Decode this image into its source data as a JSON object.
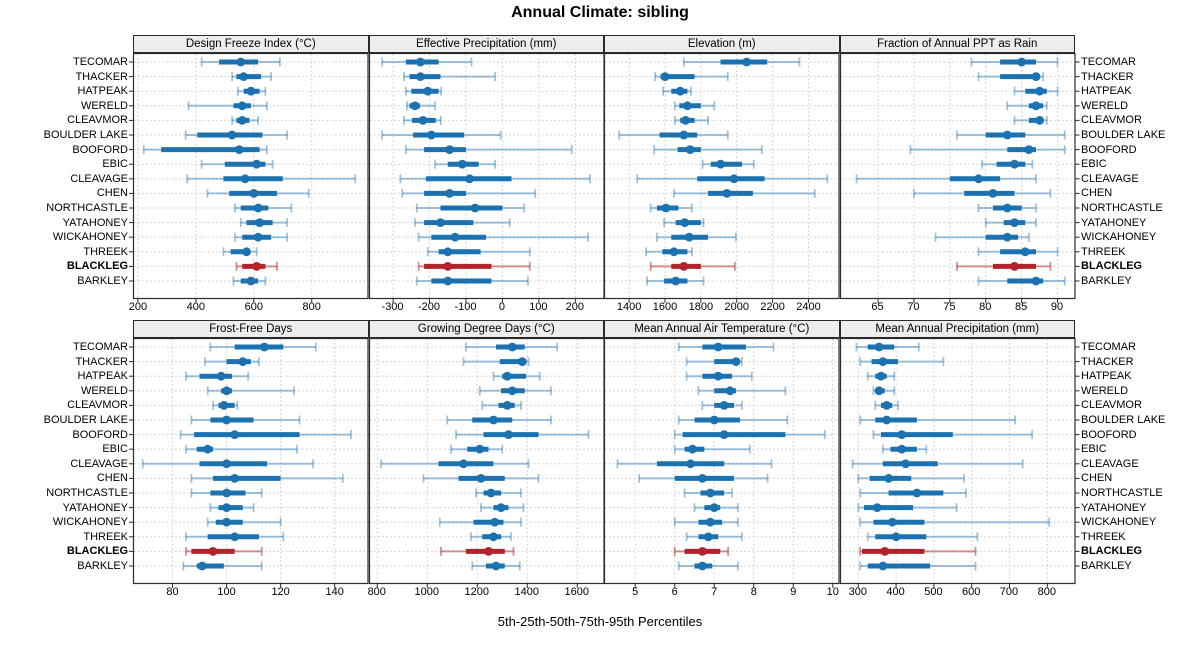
{
  "title": "Annual Climate: sibling",
  "xlabel": "5th-25th-50th-75th-95th Percentiles",
  "colors": {
    "series": "#1c72b1",
    "series_light": "rgba(28,114,177,0.42)",
    "highlight": "#b2232a",
    "highlight_light": "rgba(178,35,42,0.50)",
    "grid": "#c9c9c9",
    "border": "#2b2b2b",
    "strip_bg": "#ededed",
    "text": "#000000"
  },
  "chart_data": {
    "type": "scatter",
    "variant": "trellis-percentile-dotplot",
    "title": "Annual Climate: sibling",
    "xlabel": "5th-25th-50th-75th-95th Percentiles",
    "percentiles": [
      5,
      25,
      50,
      75,
      95
    ],
    "grid": "dotted",
    "legend_position": "none",
    "highlight_category": "BLACKLEG",
    "categories": [
      "TECOMAR",
      "THACKER",
      "HATPEAK",
      "WERELD",
      "CLEAVMOR",
      "BOULDER LAKE",
      "BOOFORD",
      "EBIC",
      "CLEAVAGE",
      "CHEN",
      "NORTHCASTLE",
      "YATAHONEY",
      "WICKAHONEY",
      "THREEK",
      "BLACKLEG",
      "BARKLEY"
    ],
    "panels": [
      {
        "title": "Design Freeze Index (°C)",
        "ticks": [
          200,
          400,
          600,
          800
        ],
        "xlim": [
          183,
          996
        ],
        "rows": [
          [
            420,
            480,
            555,
            615,
            690
          ],
          [
            525,
            540,
            565,
            625,
            660
          ],
          [
            545,
            565,
            590,
            620,
            640
          ],
          [
            375,
            530,
            560,
            590,
            645
          ],
          [
            525,
            540,
            560,
            585,
            615
          ],
          [
            365,
            405,
            525,
            630,
            715
          ],
          [
            220,
            280,
            550,
            620,
            645
          ],
          [
            420,
            500,
            610,
            640,
            665
          ],
          [
            370,
            495,
            570,
            700,
            950
          ],
          [
            440,
            515,
            600,
            680,
            790
          ],
          [
            535,
            555,
            615,
            650,
            730
          ],
          [
            555,
            575,
            620,
            665,
            715
          ],
          [
            535,
            560,
            615,
            660,
            715
          ],
          [
            495,
            520,
            575,
            585,
            610
          ],
          [
            540,
            560,
            610,
            640,
            680
          ],
          [
            530,
            555,
            590,
            615,
            640
          ]
        ]
      },
      {
        "title": "Effective Precipitation (mm)",
        "ticks": [
          -300,
          -200,
          -100,
          0,
          100,
          200
        ],
        "xlim": [
          -366,
          280
        ],
        "rows": [
          [
            -330,
            -265,
            -225,
            -175,
            -85
          ],
          [
            -270,
            -255,
            -225,
            -170,
            -20
          ],
          [
            -265,
            -250,
            -205,
            -175,
            -168
          ],
          [
            -262,
            -255,
            -240,
            -226,
            -185
          ],
          [
            -270,
            -248,
            -218,
            -183,
            -169
          ],
          [
            -330,
            -245,
            -195,
            -105,
            -5
          ],
          [
            -265,
            -215,
            -145,
            -100,
            190
          ],
          [
            -185,
            -150,
            -110,
            -65,
            -20
          ],
          [
            -280,
            -210,
            -90,
            25,
            240
          ],
          [
            -275,
            -215,
            -145,
            -100,
            90
          ],
          [
            -235,
            -170,
            -75,
            0,
            60
          ],
          [
            -240,
            -215,
            -170,
            -80,
            20
          ],
          [
            -230,
            -195,
            -130,
            -45,
            235
          ],
          [
            -205,
            -175,
            -150,
            -60,
            75
          ],
          [
            -230,
            -215,
            -150,
            -30,
            75
          ],
          [
            -235,
            -195,
            -150,
            -30,
            70
          ]
        ]
      },
      {
        "title": "Elevation (m)",
        "ticks": [
          1400,
          1600,
          1800,
          2000,
          2200,
          2400
        ],
        "xlim": [
          1260,
          2573
        ],
        "rows": [
          [
            1705,
            1910,
            2055,
            2170,
            2350
          ],
          [
            1545,
            1575,
            1600,
            1765,
            1950
          ],
          [
            1590,
            1635,
            1685,
            1725,
            1745
          ],
          [
            1655,
            1680,
            1725,
            1800,
            1875
          ],
          [
            1655,
            1685,
            1715,
            1765,
            1840
          ],
          [
            1345,
            1570,
            1705,
            1780,
            1950
          ],
          [
            1540,
            1670,
            1740,
            1800,
            2140
          ],
          [
            1810,
            1855,
            1910,
            2030,
            2095
          ],
          [
            1445,
            1780,
            1985,
            2155,
            2505
          ],
          [
            1650,
            1840,
            1945,
            2090,
            2435
          ],
          [
            1520,
            1555,
            1605,
            1675,
            1750
          ],
          [
            1595,
            1660,
            1710,
            1800,
            1815
          ],
          [
            1555,
            1635,
            1735,
            1840,
            1995
          ],
          [
            1495,
            1585,
            1650,
            1725,
            1750
          ],
          [
            1520,
            1635,
            1705,
            1800,
            1990
          ],
          [
            1500,
            1595,
            1660,
            1725,
            1815
          ]
        ]
      },
      {
        "title": "Fraction of Annual PPT as Rain",
        "ticks": [
          65,
          70,
          75,
          80,
          85,
          90
        ],
        "xlim": [
          59.7,
          92.5
        ],
        "rows": [
          [
            78,
            82,
            85,
            87,
            90
          ],
          [
            79,
            82,
            87,
            87.5,
            88
          ],
          [
            84,
            85.5,
            87.5,
            88.5,
            90
          ],
          [
            83,
            86,
            87,
            88,
            88.5
          ],
          [
            84,
            86,
            87.5,
            88,
            88.5
          ],
          [
            76,
            80,
            83,
            85.5,
            91
          ],
          [
            69.5,
            83,
            86,
            87,
            91
          ],
          [
            79.5,
            81.5,
            84,
            85.5,
            86.5
          ],
          [
            62,
            75,
            79,
            82,
            87
          ],
          [
            70,
            77,
            81,
            84,
            89
          ],
          [
            79,
            81,
            83,
            85,
            87
          ],
          [
            80,
            82.5,
            84,
            85.5,
            87
          ],
          [
            73,
            80,
            83,
            84.5,
            86
          ],
          [
            79,
            82,
            85.5,
            87,
            90
          ],
          [
            76,
            81,
            84,
            87,
            89
          ],
          [
            79,
            83,
            87,
            88,
            91
          ]
        ]
      },
      {
        "title": "Frost-Free Days",
        "ticks": [
          80,
          100,
          120,
          140
        ],
        "xlim": [
          65.4,
          152.5
        ],
        "rows": [
          [
            94,
            103,
            114,
            121,
            133
          ],
          [
            92,
            100,
            106,
            109,
            112
          ],
          [
            85,
            90,
            98,
            102,
            108
          ],
          [
            93,
            98,
            100,
            102,
            125
          ],
          [
            95,
            97,
            99,
            103,
            104
          ],
          [
            87,
            94,
            100,
            110,
            127
          ],
          [
            83,
            88,
            103,
            127,
            146
          ],
          [
            85,
            89,
            93,
            95,
            126
          ],
          [
            69,
            90,
            100,
            115,
            132
          ],
          [
            87,
            95,
            103,
            120,
            143
          ],
          [
            87,
            94,
            100,
            107,
            113
          ],
          [
            94,
            97,
            100,
            106,
            110
          ],
          [
            93,
            96,
            100,
            106,
            120
          ],
          [
            85,
            93,
            103,
            112,
            121
          ],
          [
            85,
            87,
            95,
            103,
            113
          ],
          [
            84,
            89,
            91,
            99,
            113
          ]
        ]
      },
      {
        "title": "Growing Degree Days (°C)",
        "ticks": [
          800,
          1000,
          1200,
          1400,
          1600
        ],
        "xlim": [
          767,
          1709
        ],
        "rows": [
          [
            1155,
            1275,
            1340,
            1390,
            1520
          ],
          [
            1145,
            1290,
            1380,
            1395,
            1405
          ],
          [
            1265,
            1300,
            1320,
            1395,
            1450
          ],
          [
            1210,
            1295,
            1340,
            1390,
            1495
          ],
          [
            1220,
            1285,
            1320,
            1350,
            1375
          ],
          [
            1080,
            1180,
            1265,
            1340,
            1495
          ],
          [
            1115,
            1225,
            1325,
            1445,
            1645
          ],
          [
            1095,
            1160,
            1210,
            1245,
            1300
          ],
          [
            815,
            1045,
            1145,
            1265,
            1405
          ],
          [
            985,
            1125,
            1215,
            1310,
            1445
          ],
          [
            1195,
            1225,
            1255,
            1295,
            1375
          ],
          [
            1215,
            1265,
            1295,
            1325,
            1385
          ],
          [
            1050,
            1185,
            1270,
            1305,
            1375
          ],
          [
            1175,
            1220,
            1265,
            1295,
            1335
          ],
          [
            1055,
            1155,
            1245,
            1310,
            1345
          ],
          [
            1180,
            1235,
            1275,
            1310,
            1370
          ]
        ]
      },
      {
        "title": "Mean Annual Air Temperature (°C)",
        "ticks": [
          5,
          6,
          7,
          8,
          9,
          10
        ],
        "xlim": [
          4.21,
          10.17
        ],
        "rows": [
          [
            6.1,
            6.7,
            7.1,
            7.8,
            8.5
          ],
          [
            6.3,
            7.0,
            7.55,
            7.65,
            7.7
          ],
          [
            6.3,
            6.7,
            7.1,
            7.45,
            7.95
          ],
          [
            6.6,
            7.0,
            7.4,
            7.55,
            8.8
          ],
          [
            6.7,
            7.0,
            7.25,
            7.5,
            7.7
          ],
          [
            6.1,
            6.5,
            7.0,
            7.65,
            8.85
          ],
          [
            6.0,
            6.2,
            7.25,
            8.8,
            9.8
          ],
          [
            6.0,
            6.25,
            6.45,
            6.75,
            7.9
          ],
          [
            4.55,
            5.55,
            6.4,
            7.25,
            8.45
          ],
          [
            5.1,
            6.0,
            6.7,
            7.5,
            8.35
          ],
          [
            6.25,
            6.65,
            6.9,
            7.25,
            7.45
          ],
          [
            6.5,
            6.75,
            7.0,
            7.15,
            7.6
          ],
          [
            6.0,
            6.6,
            6.9,
            7.2,
            7.6
          ],
          [
            6.3,
            6.6,
            6.85,
            7.1,
            7.7
          ],
          [
            6.0,
            6.25,
            6.7,
            7.15,
            7.35
          ],
          [
            6.1,
            6.5,
            6.7,
            6.95,
            7.6
          ]
        ]
      },
      {
        "title": "Mean Annual Precipitation (mm)",
        "ticks": [
          300,
          400,
          500,
          600,
          700,
          800
        ],
        "xlim": [
          251.6,
          874.6
        ],
        "rows": [
          [
            295,
            325,
            355,
            395,
            460
          ],
          [
            305,
            335,
            365,
            405,
            525
          ],
          [
            325,
            345,
            360,
            375,
            395
          ],
          [
            340,
            345,
            355,
            370,
            395
          ],
          [
            345,
            360,
            375,
            390,
            405
          ],
          [
            305,
            345,
            375,
            455,
            715
          ],
          [
            340,
            360,
            415,
            550,
            760
          ],
          [
            365,
            385,
            415,
            455,
            480
          ],
          [
            285,
            365,
            425,
            510,
            735
          ],
          [
            300,
            330,
            380,
            440,
            580
          ],
          [
            305,
            380,
            455,
            525,
            585
          ],
          [
            300,
            315,
            350,
            445,
            560
          ],
          [
            305,
            340,
            390,
            475,
            805
          ],
          [
            325,
            345,
            400,
            480,
            615
          ],
          [
            305,
            310,
            370,
            475,
            610
          ],
          [
            305,
            325,
            365,
            490,
            610
          ]
        ]
      }
    ]
  }
}
